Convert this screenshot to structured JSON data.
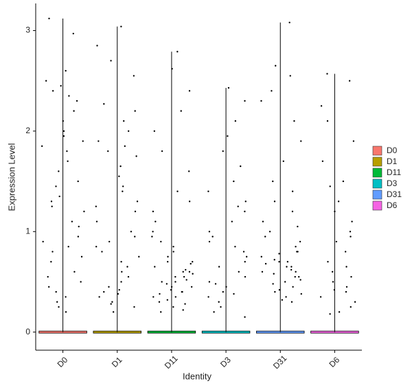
{
  "chart_data": {
    "type": "violin",
    "x_label": "Identity",
    "y_label": "Expression Level",
    "categories": [
      "D0",
      "D1",
      "D11",
      "D3",
      "D31",
      "D6"
    ],
    "series": [
      {
        "name": "D0",
        "color": "#F8766D",
        "values": [
          3.12,
          2.97,
          2.6,
          2.45,
          2.4,
          2.3,
          2.2,
          2.1,
          2.0,
          1.95,
          1.85,
          1.8,
          1.7,
          1.6,
          1.5,
          1.45,
          1.35,
          1.3,
          1.2,
          1.1,
          1.05,
          0.95,
          0.9,
          0.85,
          0.75,
          0.7,
          0.6,
          0.55,
          0.5,
          0.45,
          0.4,
          0.35,
          0.3,
          0.25,
          0.2,
          2.5,
          2.35,
          1.9,
          1.25,
          0.8
        ]
      },
      {
        "name": "D1",
        "color": "#B79F00",
        "values": [
          3.04,
          2.85,
          2.7,
          2.55,
          2.27,
          2.2,
          2.1,
          2.0,
          1.9,
          1.85,
          1.75,
          1.65,
          1.55,
          1.45,
          1.4,
          1.3,
          1.2,
          1.1,
          1.0,
          0.95,
          0.9,
          0.8,
          0.75,
          0.7,
          0.65,
          0.6,
          0.55,
          0.5,
          0.45,
          0.4,
          0.35,
          0.3,
          0.25,
          0.2,
          1.8,
          1.25,
          0.85,
          0.42,
          0.38,
          0.28
        ]
      },
      {
        "name": "D11",
        "color": "#00BA38",
        "values": [
          2.79,
          2.62,
          2.4,
          2.2,
          2.0,
          1.8,
          1.6,
          1.4,
          1.3,
          1.2,
          1.1,
          1.0,
          0.95,
          0.9,
          0.85,
          0.8,
          0.75,
          0.7,
          0.68,
          0.65,
          0.62,
          0.6,
          0.58,
          0.55,
          0.52,
          0.5,
          0.48,
          0.45,
          0.42,
          0.4,
          0.38,
          0.35,
          0.32,
          0.3,
          0.28,
          0.25,
          0.22,
          0.2,
          0.5,
          0.55,
          0.45,
          0.6,
          0.4,
          0.35,
          0.7
        ]
      },
      {
        "name": "D3",
        "color": "#00BFC4",
        "values": [
          2.43,
          2.3,
          2.1,
          1.95,
          1.8,
          1.65,
          1.5,
          1.4,
          1.3,
          1.2,
          1.1,
          1.0,
          0.95,
          0.9,
          0.85,
          0.8,
          0.7,
          0.65,
          0.6,
          0.55,
          0.5,
          0.45,
          0.4,
          0.35,
          0.3,
          0.25,
          0.2,
          0.15,
          1.25,
          0.75,
          0.48,
          0.38
        ]
      },
      {
        "name": "D31",
        "color": "#619CFF",
        "values": [
          3.08,
          2.65,
          2.55,
          2.4,
          2.3,
          2.1,
          1.9,
          1.7,
          1.5,
          1.4,
          1.3,
          1.2,
          1.1,
          1.05,
          1.0,
          0.95,
          0.9,
          0.85,
          0.8,
          0.78,
          0.75,
          0.72,
          0.7,
          0.68,
          0.65,
          0.62,
          0.6,
          0.58,
          0.55,
          0.52,
          0.5,
          0.48,
          0.45,
          0.42,
          0.4,
          0.38,
          0.35,
          0.32,
          0.3,
          0.65,
          0.7,
          0.6,
          0.55,
          0.8
        ]
      },
      {
        "name": "D6",
        "color": "#F564E3",
        "values": [
          2.57,
          2.5,
          2.25,
          2.1,
          1.9,
          1.7,
          1.5,
          1.3,
          1.2,
          1.1,
          1.0,
          0.9,
          0.8,
          0.7,
          0.65,
          0.6,
          0.55,
          0.5,
          0.45,
          0.4,
          0.35,
          0.3,
          0.25,
          0.2,
          0.18,
          1.45,
          0.95,
          0.42
        ]
      }
    ],
    "ylim": [
      -0.18,
      3.27
    ],
    "yticks": [
      0,
      1,
      2,
      3
    ],
    "grid": false,
    "legend": "right"
  }
}
